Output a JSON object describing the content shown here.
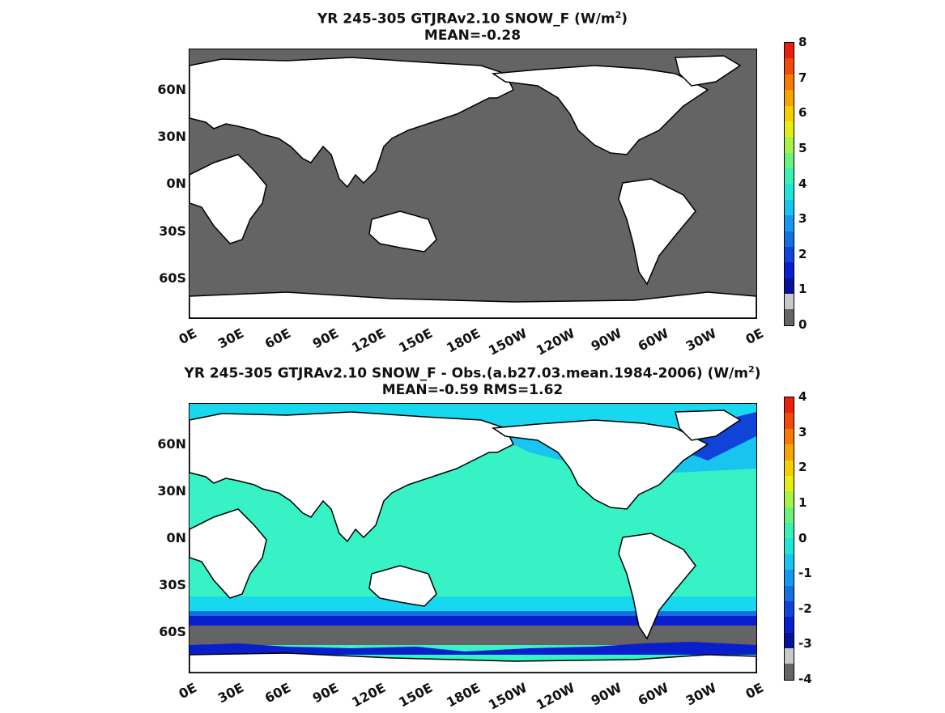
{
  "panels": [
    {
      "title_line1": "YR 245-305 GTJRAv2.10  SNOW_F (W/m",
      "title_sup": "2",
      "title_close": ")",
      "title_line2": "MEAN=-0.28",
      "colorbar": {
        "ticks": [
          "8",
          "7",
          "6",
          "5",
          "4",
          "3",
          "2",
          "1",
          "0"
        ],
        "colors": [
          "#e8200d",
          "#f24a0a",
          "#f57a00",
          "#f5a400",
          "#f5cf00",
          "#e5ee12",
          "#a8f04a",
          "#6df07e",
          "#3cf0b5",
          "#1de6d8",
          "#18c4f0",
          "#1698f0",
          "#1470e0",
          "#1044d8",
          "#0a1fcc",
          "#08109a",
          "#c8c8c8",
          "#646464"
        ]
      },
      "ocean_color": "#646464"
    },
    {
      "title_line1": "YR 245-305 GTJRAv2.10 SNOW_F - Obs.(a.b27.03.mean.1984-2006) (W/m",
      "title_sup": "2",
      "title_close": ")",
      "title_line2": "MEAN=-0.59 RMS=1.62",
      "colorbar": {
        "ticks": [
          "4",
          "3",
          "2",
          "1",
          "0",
          "-1",
          "-2",
          "-3",
          "-4"
        ],
        "colors": [
          "#e8200d",
          "#f24a0a",
          "#f57a00",
          "#f5a400",
          "#f5cf00",
          "#e5ee12",
          "#a8f04a",
          "#6df07e",
          "#3cf0b5",
          "#1de6d8",
          "#18c4f0",
          "#1698f0",
          "#1470e0",
          "#1044d8",
          "#0a1fcc",
          "#08109a",
          "#c8c8c8",
          "#646464"
        ]
      },
      "ocean_color": "#36f2c4"
    }
  ],
  "lat_labels": [
    "60N",
    "30N",
    "0N",
    "30S",
    "60S"
  ],
  "lon_labels": [
    "0E",
    "30E",
    "60E",
    "90E",
    "120E",
    "150E",
    "180E",
    "150W",
    "120W",
    "90W",
    "60W",
    "30W",
    "0E"
  ]
}
